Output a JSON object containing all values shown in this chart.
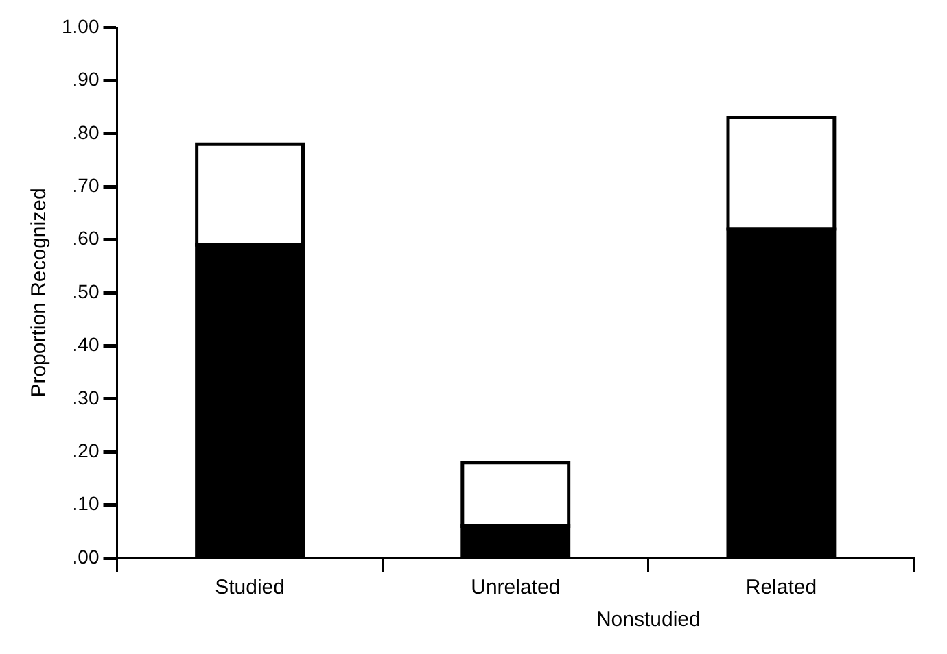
{
  "chart_data": {
    "type": "bar",
    "stacked": true,
    "ylabel": "Proportion Recognized",
    "xlabel": "Nonstudied",
    "categories": [
      "Studied",
      "Unrelated",
      "Related"
    ],
    "series": [
      {
        "color": "#000000",
        "values": [
          0.59,
          0.06,
          0.62
        ]
      },
      {
        "color": "#ffffff",
        "values": [
          0.19,
          0.12,
          0.21
        ]
      }
    ],
    "ylim": [
      0,
      1
    ],
    "yticks": [
      {
        "value": 0,
        "label": ".00"
      },
      {
        "value": 0.1,
        "label": ".10"
      },
      {
        "value": 0.2,
        "label": ".20"
      },
      {
        "value": 0.3,
        "label": ".30"
      },
      {
        "value": 0.4,
        "label": ".40"
      },
      {
        "value": 0.5,
        "label": ".50"
      },
      {
        "value": 0.6,
        "label": ".60"
      },
      {
        "value": 0.7,
        "label": ".70"
      },
      {
        "value": 0.8,
        "label": ".80"
      },
      {
        "value": 0.9,
        "label": ".90"
      },
      {
        "value": 1,
        "label": "1.00"
      }
    ],
    "grid": false,
    "legend": false
  }
}
